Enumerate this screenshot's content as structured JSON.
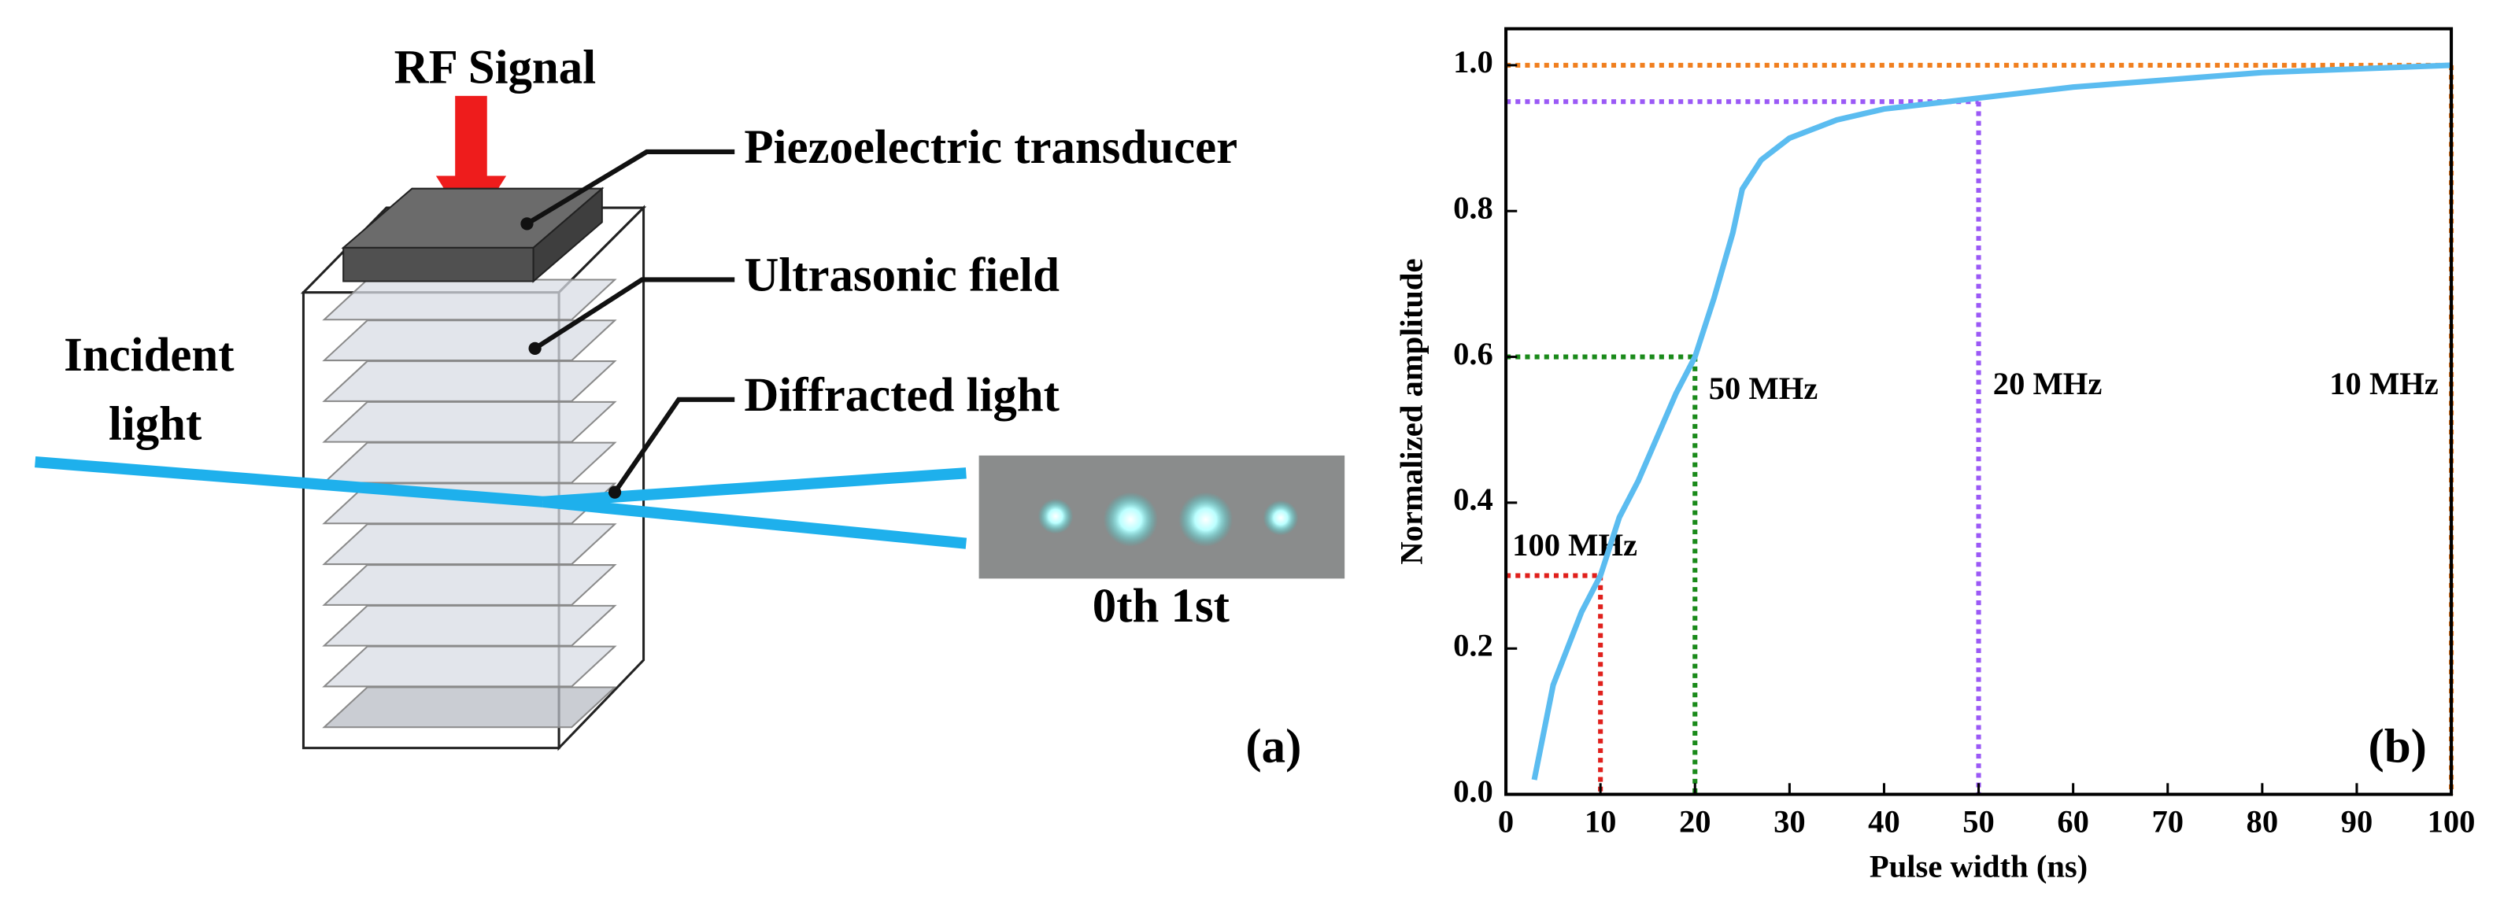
{
  "diagram": {
    "rf_signal": "RF Signal",
    "piezo": "Piezoelectric transducer",
    "ultrasonic": "Ultrasonic field",
    "incident": [
      "Incident",
      "light"
    ],
    "diffracted": "Diffracted light",
    "orders": "0th 1st",
    "panel_label": "(a)"
  },
  "chart_data": {
    "type": "line",
    "panel_label": "(b)",
    "x_label": "Pulse width (ns)",
    "y_label": "Normalized amplitude",
    "color": "#5bbcf0",
    "x": [
      3,
      5,
      8,
      10,
      12,
      14,
      16,
      18,
      20,
      22,
      24,
      25,
      27,
      30,
      35,
      40,
      50,
      60,
      70,
      80,
      90,
      100
    ],
    "values": [
      0.02,
      0.15,
      0.25,
      0.3,
      0.38,
      0.43,
      0.49,
      0.55,
      0.6,
      0.68,
      0.77,
      0.83,
      0.87,
      0.9,
      0.925,
      0.94,
      0.955,
      0.97,
      0.98,
      0.99,
      0.995,
      1.0
    ],
    "xlim": [
      0,
      100
    ],
    "ylim": [
      0,
      1.05
    ],
    "xticks": [
      0,
      10,
      20,
      30,
      40,
      50,
      60,
      70,
      80,
      90,
      100
    ],
    "yticks": [
      {
        "value": 0,
        "label": "0.0"
      },
      0.2,
      0.4,
      0.6,
      0.8,
      {
        "value": 1,
        "label": "1.0"
      }
    ],
    "guides": [
      {
        "x": 10,
        "y": 0.3,
        "color": "#e0201c",
        "label": "100 MHz"
      },
      {
        "x": 20,
        "y": 0.6,
        "color": "#1a8a1a",
        "label": "50 MHz"
      },
      {
        "x": 50,
        "y": 0.95,
        "color": "#9b59f6",
        "label": "20 MHz"
      },
      {
        "x": 100,
        "y": 1.0,
        "color": "#f07f1f",
        "label": "10 MHz"
      }
    ]
  }
}
